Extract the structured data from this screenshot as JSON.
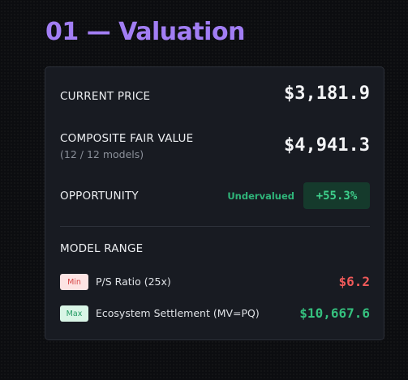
{
  "section": {
    "title": "01 — Valuation"
  },
  "valuation": {
    "current_price": {
      "label": "CURRENT PRICE",
      "value": "$3,181.9"
    },
    "composite_fair_value": {
      "label": "COMPOSITE FAIR VALUE",
      "sub": "(12 / 12 models)",
      "value": "$4,941.3"
    },
    "opportunity": {
      "label": "OPPORTUNITY",
      "status": "Undervalued",
      "percent": "+55.3%"
    },
    "model_range": {
      "heading": "MODEL RANGE",
      "items": [
        {
          "tag": "Min",
          "name": "P/S Ratio (25x)",
          "value": "$6.2",
          "color": "#f05a5a"
        },
        {
          "tag": "Max",
          "name": "Ecosystem Settlement (MV=PQ)",
          "value": "$10,667.6",
          "color": "#35c07e"
        }
      ]
    }
  },
  "colors": {
    "accent": "#a27ef4",
    "positive": "#35c07e",
    "negative": "#f05a5a",
    "card_background": "#181b22",
    "page_background": "#0c0d10"
  }
}
